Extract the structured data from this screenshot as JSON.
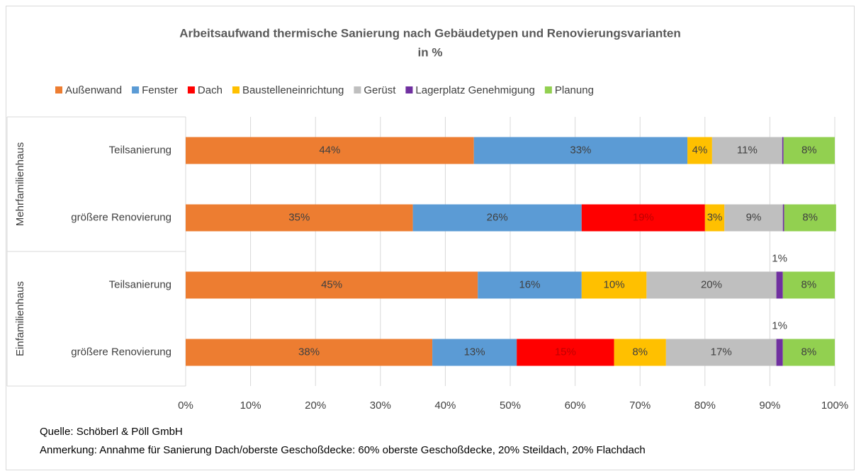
{
  "chart_data": {
    "type": "stacked-bar-horizontal",
    "title": "Arbeitsaufwand thermische Sanierung nach Gebäudetypen und Renovierungsvarianten",
    "subtitle": "in %",
    "groups": [
      {
        "name": "Mehrfamilienhaus",
        "categories": [
          "Teilsanierung",
          "größere Renovierung"
        ]
      },
      {
        "name": "Einfamilienhaus",
        "categories": [
          "Teilsanierung",
          "größere Renovierung"
        ]
      }
    ],
    "series": [
      {
        "name": "Außenwand",
        "color": "#ED7D31",
        "values": [
          44.4,
          35,
          45,
          38
        ],
        "value_labels": [
          "44%",
          "35%",
          "45%",
          "38%"
        ]
      },
      {
        "name": "Fenster",
        "color": "#5B9BD5",
        "values": [
          32.9,
          26,
          16,
          13
        ],
        "value_labels": [
          "33%",
          "26%",
          "16%",
          "13%"
        ]
      },
      {
        "name": "Dach",
        "color": "#FF0000",
        "values": [
          0,
          19,
          0,
          15
        ],
        "value_labels": [
          null,
          "19%",
          null,
          "15%"
        ]
      },
      {
        "name": "Baustelleneinrichtung",
        "color": "#FFC000",
        "values": [
          3.8,
          3,
          10,
          8
        ],
        "value_labels": [
          "4%",
          "3%",
          "10%",
          "8%"
        ]
      },
      {
        "name": "Gerüst",
        "color": "#BFBFBF",
        "values": [
          10.8,
          9,
          20,
          17
        ],
        "value_labels": [
          "11%",
          "9%",
          "20%",
          "17%"
        ]
      },
      {
        "name": "Lagerplatz Genehmigung",
        "color": "#7030A0",
        "values": [
          0.2,
          0.2,
          1,
          1
        ],
        "value_labels": [
          null,
          null,
          "1%",
          "1%"
        ]
      },
      {
        "name": "Planung",
        "color": "#92D050",
        "values": [
          7.9,
          8,
          8,
          8
        ],
        "value_labels": [
          "8%",
          "8%",
          "8%",
          "8%"
        ]
      }
    ],
    "xlim": [
      0,
      100
    ],
    "xticks": [
      {
        "value": 0,
        "label": "0%"
      },
      {
        "value": 10,
        "label": "10%"
      },
      {
        "value": 20,
        "label": "20%"
      },
      {
        "value": 30,
        "label": "30%"
      },
      {
        "value": 40,
        "label": "40%"
      },
      {
        "value": 50,
        "label": "50%"
      },
      {
        "value": 60,
        "label": "60%"
      },
      {
        "value": 70,
        "label": "70%"
      },
      {
        "value": 80,
        "label": "80%"
      },
      {
        "value": 90,
        "label": "90%"
      },
      {
        "value": 100,
        "label": "100%"
      }
    ],
    "grid": true,
    "legend": "top",
    "source": "Quelle: Schöberl & Pöll GmbH",
    "note": "Anmerkung: Annahme für Sanierung Dach/oberste Geschoßdecke: 60% oberste Geschoßdecke, 20% Steildach, 20% Flachdach"
  }
}
